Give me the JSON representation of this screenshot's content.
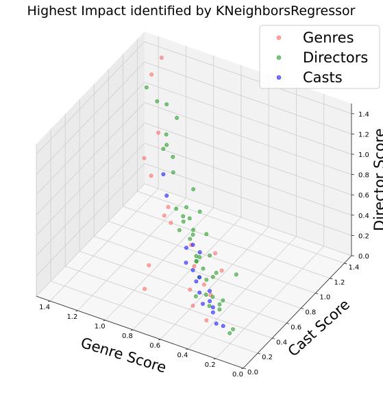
{
  "chart_data": {
    "type": "scatter",
    "projection": "3d",
    "title": "Highest Impact identified by KNeighborsRegressor",
    "xlabel": "Genre Score",
    "ylabel": "Cast Score",
    "zlabel": "Director Score",
    "xlim": [
      0.0,
      1.5
    ],
    "ylim": [
      0.0,
      1.5
    ],
    "zlim": [
      0.0,
      1.5
    ],
    "x_ticks": [
      "0.0",
      "0.2",
      "0.4",
      "0.6",
      "0.8",
      "1.0",
      "1.2",
      "1.4"
    ],
    "y_ticks": [
      "0.0",
      "0.2",
      "0.4",
      "0.6",
      "0.8",
      "1.0",
      "1.2",
      "1.4"
    ],
    "z_ticks": [
      "0.0",
      "0.2",
      "0.4",
      "0.6",
      "0.8",
      "1.0",
      "1.2",
      "1.4"
    ],
    "grid": true,
    "legend_position": "top-right",
    "series": [
      {
        "name": "Genres",
        "color": "#ff6b6b",
        "points": [
          [
            0.6,
            0.85,
            0.05
          ],
          [
            0.7,
            0.95,
            0.1
          ],
          [
            0.9,
            1.0,
            0.05
          ],
          [
            1.1,
            1.1,
            0.1
          ],
          [
            1.2,
            1.2,
            0.05
          ],
          [
            0.7,
            0.6,
            0.0
          ],
          [
            0.8,
            0.85,
            0.0
          ],
          [
            0.65,
            0.7,
            0.0
          ],
          [
            0.55,
            0.6,
            0.02
          ],
          [
            0.95,
            0.45,
            0.0
          ],
          [
            1.05,
            0.7,
            0.0
          ],
          [
            0.45,
            0.35,
            0.0
          ],
          [
            0.6,
            0.45,
            0.0
          ],
          [
            1.25,
            1.35,
            0.0
          ],
          [
            1.4,
            1.4,
            0.2
          ],
          [
            1.45,
            1.4,
            0.35
          ],
          [
            1.4,
            1.5,
            0.55
          ],
          [
            1.35,
            1.45,
            1.35
          ],
          [
            1.45,
            1.5,
            1.1
          ]
        ]
      },
      {
        "name": "Directors",
        "color": "#2ca02c",
        "points": [
          [
            0.1,
            0.05,
            0.3
          ],
          [
            0.15,
            0.1,
            0.2
          ],
          [
            0.25,
            0.15,
            0.4
          ],
          [
            0.35,
            0.2,
            0.3
          ],
          [
            0.45,
            0.25,
            0.5
          ],
          [
            0.5,
            0.35,
            0.6
          ],
          [
            0.55,
            0.4,
            0.55
          ],
          [
            0.6,
            0.45,
            0.7
          ],
          [
            0.65,
            0.5,
            0.8
          ],
          [
            0.7,
            0.55,
            0.85
          ],
          [
            0.75,
            0.55,
            0.6
          ],
          [
            0.8,
            0.6,
            0.75
          ],
          [
            0.4,
            0.3,
            0.7
          ],
          [
            0.45,
            0.35,
            0.85
          ],
          [
            0.55,
            0.45,
            0.95
          ],
          [
            0.65,
            0.55,
            1.05
          ],
          [
            0.85,
            0.65,
            1.2
          ],
          [
            0.95,
            0.75,
            1.3
          ],
          [
            0.9,
            0.8,
            1.45
          ],
          [
            1.0,
            0.85,
            1.5
          ],
          [
            0.35,
            0.25,
            0.55
          ],
          [
            0.3,
            0.2,
            0.65
          ],
          [
            0.5,
            0.4,
            0.45
          ],
          [
            0.6,
            0.5,
            0.4
          ],
          [
            0.7,
            0.6,
            0.5
          ],
          [
            0.8,
            0.7,
            0.55
          ],
          [
            0.2,
            0.1,
            0.5
          ],
          [
            0.3,
            0.15,
            0.45
          ],
          [
            0.4,
            0.25,
            0.35
          ],
          [
            0.5,
            0.3,
            0.25
          ],
          [
            0.9,
            0.75,
            0.95
          ],
          [
            1.0,
            0.85,
            1.1
          ],
          [
            1.05,
            0.9,
            1.0
          ],
          [
            0.05,
            0.0,
            0.9
          ],
          [
            1.25,
            1.05,
            1.4
          ],
          [
            1.2,
            1.1,
            1.25
          ],
          [
            0.45,
            0.35,
            0.4
          ],
          [
            0.55,
            0.4,
            0.5
          ],
          [
            0.25,
            0.15,
            0.35
          ],
          [
            0.65,
            0.55,
            0.65
          ],
          [
            0.75,
            0.6,
            0.7
          ]
        ]
      },
      {
        "name": "Casts",
        "color": "#1f1fff",
        "points": [
          [
            0.3,
            0.2,
            0.15
          ],
          [
            0.35,
            0.25,
            0.2
          ],
          [
            0.4,
            0.3,
            0.25
          ],
          [
            0.45,
            0.3,
            0.2
          ],
          [
            0.5,
            0.35,
            0.25
          ],
          [
            0.55,
            0.4,
            0.3
          ],
          [
            0.6,
            0.45,
            0.35
          ],
          [
            0.65,
            0.45,
            0.4
          ],
          [
            0.7,
            0.55,
            0.45
          ],
          [
            0.4,
            0.3,
            0.35
          ],
          [
            0.5,
            0.35,
            0.4
          ],
          [
            0.25,
            0.2,
            0.15
          ],
          [
            0.35,
            0.25,
            0.25
          ],
          [
            0.55,
            0.45,
            0.55
          ],
          [
            0.6,
            0.45,
            0.6
          ],
          [
            1.0,
            0.85,
            0.6
          ],
          [
            1.05,
            0.9,
            0.75
          ]
        ]
      }
    ]
  }
}
